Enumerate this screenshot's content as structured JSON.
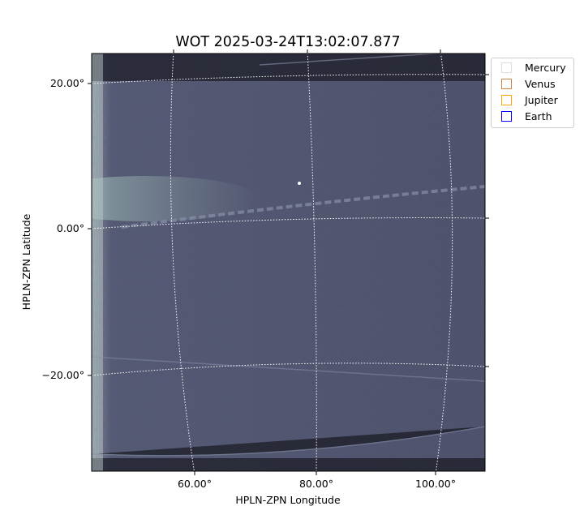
{
  "chart_data": {
    "type": "heatmap",
    "title": "WOT 2025-03-24T13:02:07.877",
    "xlabel": "HPLN-ZPN Longitude",
    "ylabel": "HPLN-ZPN Latitude",
    "x_ticks": [
      "60.00°",
      "80.00°",
      "100.00°"
    ],
    "y_ticks": [
      "20.00°",
      "0.00°",
      "−20.00°"
    ],
    "grid": true,
    "colormap": "bone",
    "legend_placement": "outside-top-right",
    "legend": [
      {
        "name": "Mercury",
        "color": "#dddddd"
      },
      {
        "name": "Venus",
        "color": "#cd853f"
      },
      {
        "name": "Jupiter",
        "color": "#ffa500"
      },
      {
        "name": "Earth",
        "color": "#0000ff"
      }
    ]
  }
}
